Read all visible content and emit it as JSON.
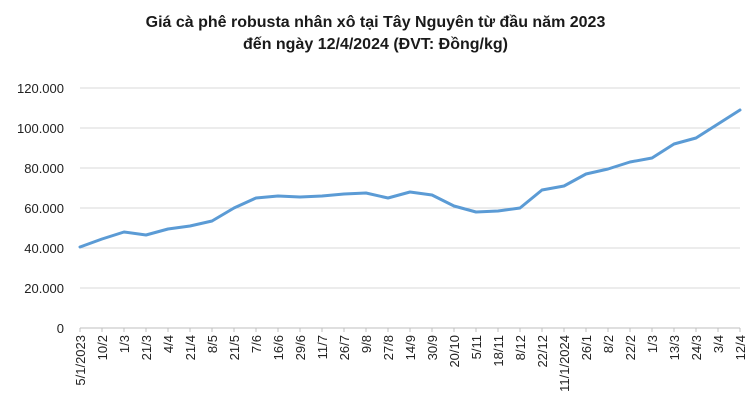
{
  "chart_data": {
    "type": "line",
    "title_line1": "Giá cà phê robusta nhân xô tại Tây Nguyên từ đầu năm 2023",
    "title_line2": "đến ngày 12/4/2024 (ĐVT: Đồng/kg)",
    "xlabel": "",
    "ylabel": "",
    "ylim": [
      0,
      120000
    ],
    "y_ticks": [
      {
        "value": 0,
        "label": "0"
      },
      {
        "value": 20000,
        "label": "20.000"
      },
      {
        "value": 40000,
        "label": "40.000"
      },
      {
        "value": 60000,
        "label": "60.000"
      },
      {
        "value": 80000,
        "label": "80.000"
      },
      {
        "value": 100000,
        "label": "100.000"
      },
      {
        "value": 120000,
        "label": "120.000"
      }
    ],
    "grid": true,
    "line_color": "#5B9BD5",
    "categories": [
      "5/1/2023",
      "10/2",
      "1/3",
      "21/3",
      "4/4",
      "21/4",
      "8/5",
      "21/5",
      "7/6",
      "16/6",
      "29/6",
      "11/7",
      "26/7",
      "9/8",
      "27/8",
      "14/9",
      "30/9",
      "20/10",
      "5/11",
      "18/11",
      "8/12",
      "22/12",
      "11/1/2024",
      "26/1",
      "8/2",
      "22/2",
      "1/3",
      "13/3",
      "24/3",
      "3/4",
      "12/4"
    ],
    "series": [
      {
        "values": [
          40500,
          44500,
          48000,
          46500,
          49500,
          51000,
          53500,
          60000,
          65000,
          66000,
          65500,
          66000,
          67000,
          67500,
          65000,
          68000,
          66500,
          61000,
          58000,
          58500,
          60000,
          69000,
          71000,
          77000,
          79500,
          83000,
          85000,
          92000,
          95000,
          102000,
          109000
        ]
      }
    ]
  }
}
